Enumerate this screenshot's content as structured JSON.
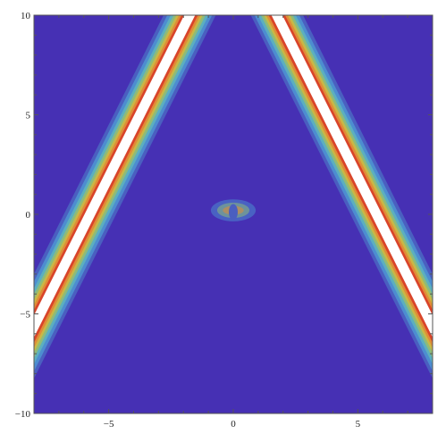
{
  "chart_data": {
    "type": "heatmap",
    "xlim": [
      -8,
      8
    ],
    "ylim": [
      -10,
      10
    ],
    "x_ticks": [
      -5,
      0,
      5
    ],
    "y_ticks": [
      10,
      5,
      0,
      -5,
      -10
    ],
    "x_tick_labels": [
      "−5",
      "0",
      "5"
    ],
    "y_tick_labels": [
      "10",
      "5",
      "0",
      "−5",
      "−10"
    ],
    "colors": {
      "background": "#4630B4",
      "bands": [
        "#4A5FC0",
        "#4D8DD0",
        "#5CAFBF",
        "#8DBB7A",
        "#C9B845",
        "#E08C37",
        "#D9442A"
      ],
      "peak": "#FFFFFF"
    },
    "band_half_widths": [
      1.05,
      0.9,
      0.76,
      0.64,
      0.53,
      0.43,
      0.33,
      0.22
    ],
    "beams": [
      {
        "x_at_top": -1.75,
        "slope": 0.4,
        "sign": 1
      },
      {
        "x_at_top": 1.75,
        "slope": 0.4,
        "sign": -1
      }
    ],
    "description_values": {
      "crossing_point": [
        0,
        0.2
      ]
    }
  }
}
